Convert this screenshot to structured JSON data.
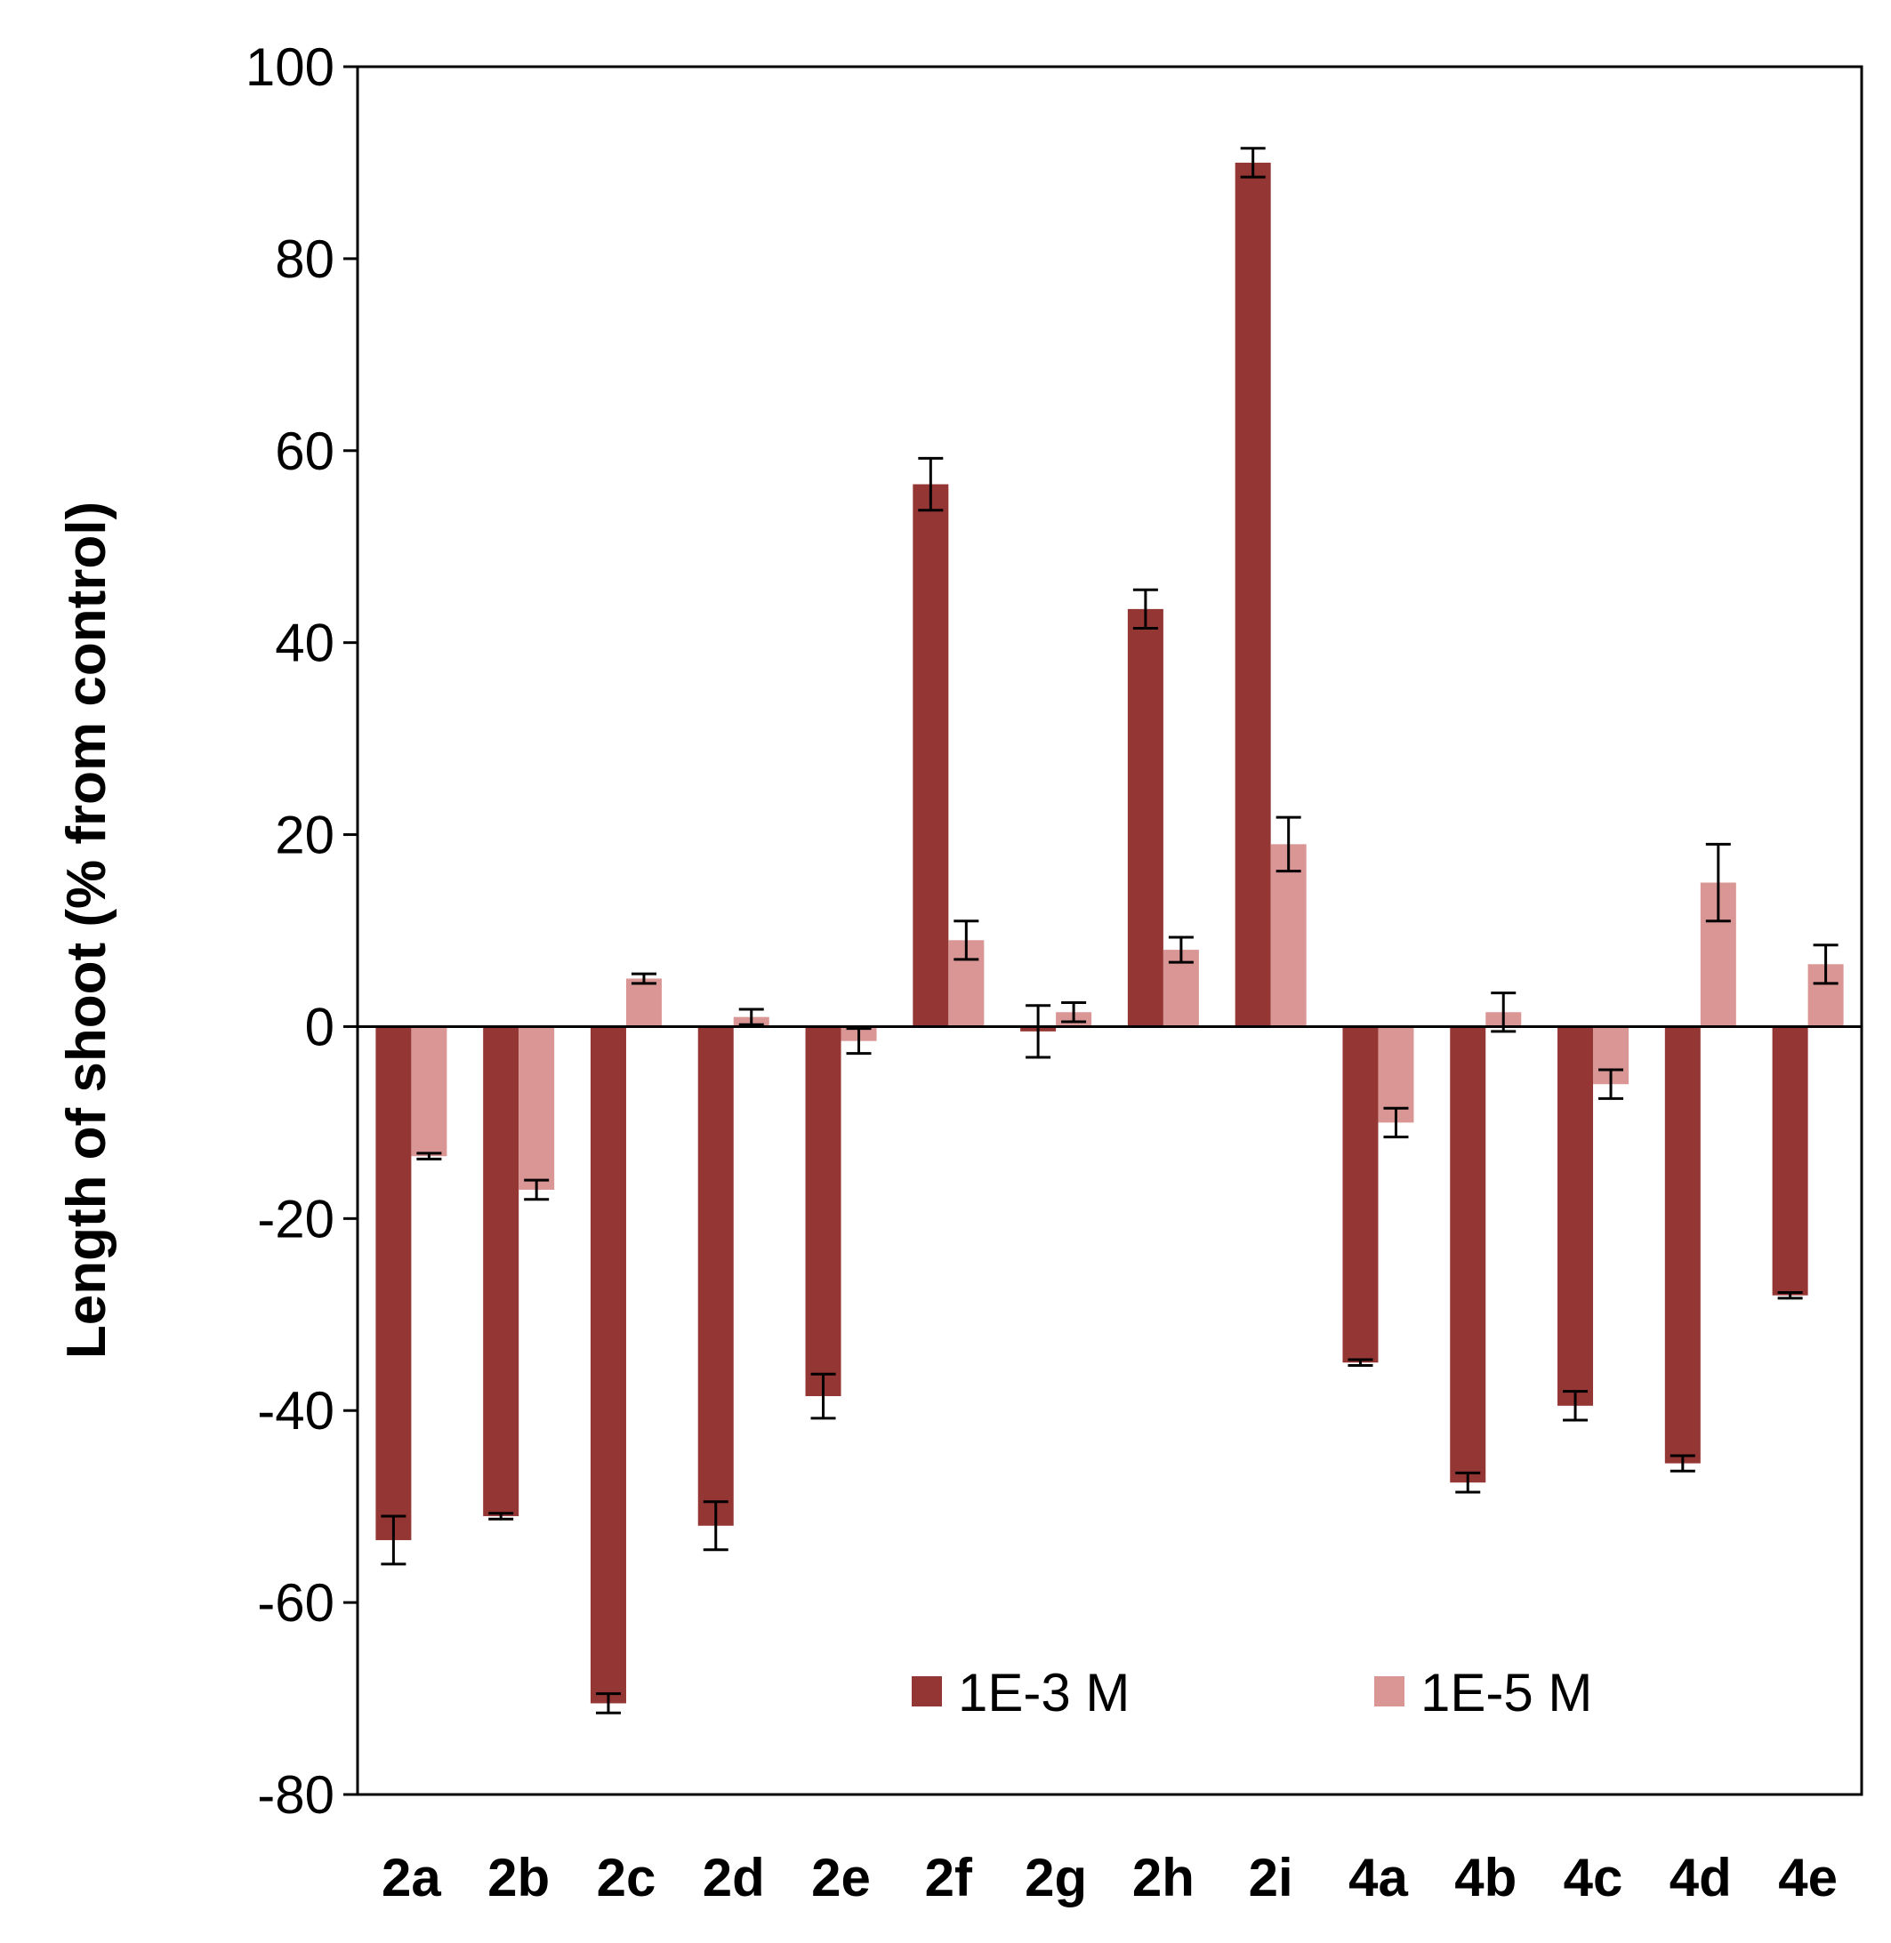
{
  "chart_data": {
    "type": "bar",
    "title": "",
    "xlabel": "",
    "ylabel": "Length of shoot (% from control)",
    "ylim": [
      -80,
      100
    ],
    "yticks": [
      100,
      80,
      60,
      40,
      20,
      0,
      -20,
      -40,
      -60,
      -80
    ],
    "grid": false,
    "legend_position": "bottom-right inside",
    "categories": [
      "2a",
      "2b",
      "2c",
      "2d",
      "2e",
      "2f",
      "2g",
      "2h",
      "2i",
      "4a",
      "4b",
      "4c",
      "4d",
      "4e"
    ],
    "series": [
      {
        "name": "1E-3 M",
        "color": "#943634",
        "values": [
          -53.5,
          -51,
          -70.5,
          -52,
          -38.5,
          56.5,
          -0.5,
          43.5,
          90,
          -35,
          -47.5,
          -39.5,
          -45.5,
          -28
        ],
        "errors": [
          2.5,
          0.3,
          1,
          2.5,
          2.3,
          2.7,
          2.7,
          2,
          1.5,
          0.3,
          1,
          1.5,
          0.8,
          0.3
        ]
      },
      {
        "name": "1E-5 M",
        "color": "#d99694",
        "values": [
          -13.5,
          -17,
          5,
          1,
          -1.5,
          9,
          1.5,
          8,
          19,
          -10,
          1.5,
          -6,
          15,
          6.5
        ],
        "errors": [
          0.3,
          1,
          0.5,
          0.8,
          1.3,
          2,
          1,
          1.3,
          2.8,
          1.5,
          2,
          1.5,
          4,
          2
        ]
      }
    ]
  }
}
